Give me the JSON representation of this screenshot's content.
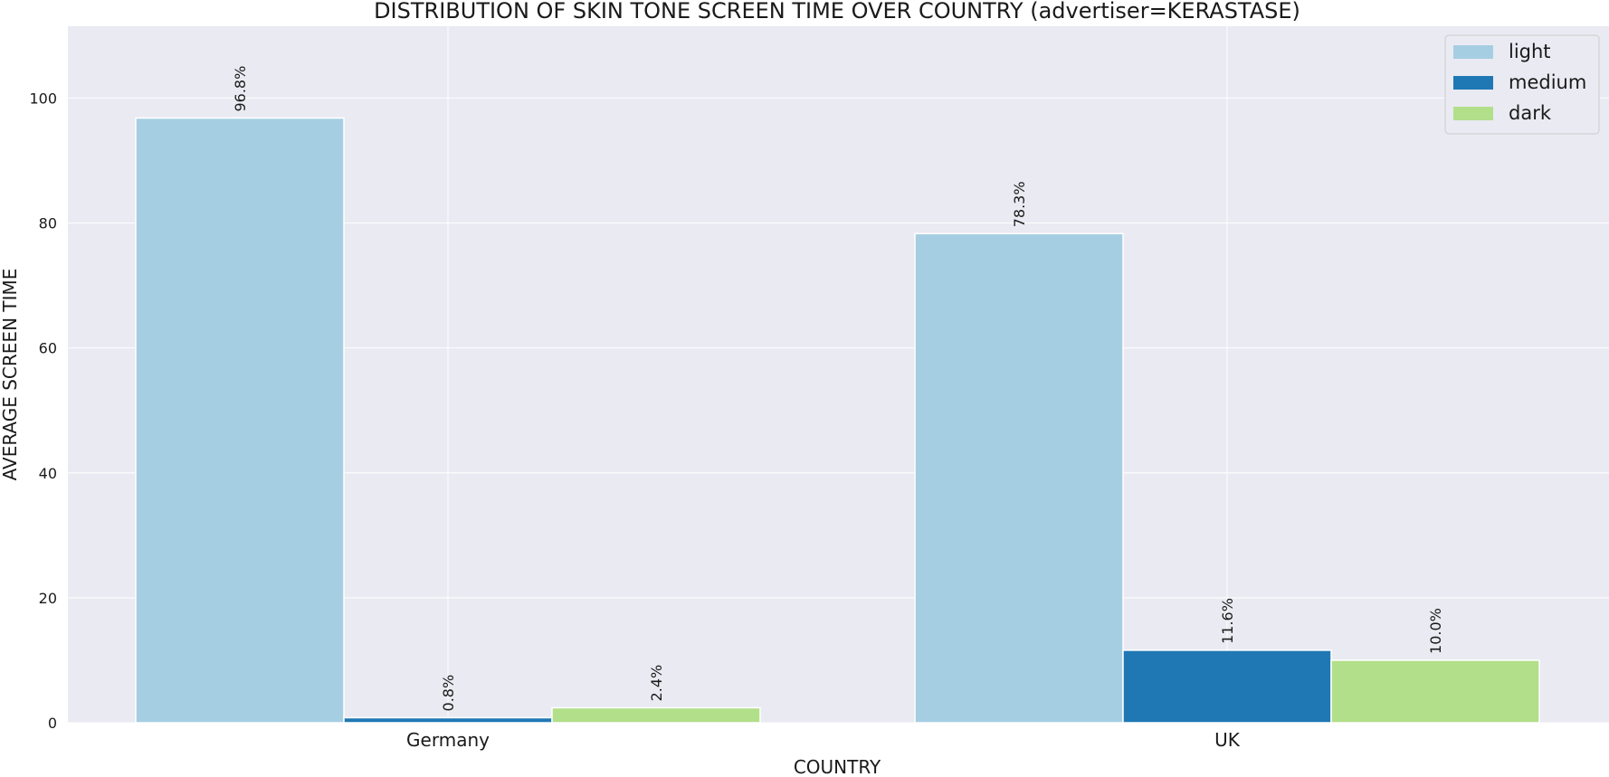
{
  "chart_data": {
    "type": "bar",
    "title": "DISTRIBUTION OF SKIN TONE SCREEN TIME OVER COUNTRY (advertiser=KERASTASE)",
    "xlabel": "COUNTRY",
    "ylabel": "AVERAGE SCREEN TIME",
    "categories": [
      "Germany",
      "UK"
    ],
    "series": [
      {
        "name": "light",
        "color": "#a6cee3",
        "values": [
          96.8,
          78.3
        ],
        "labels": [
          "96.8%",
          "78.3%"
        ]
      },
      {
        "name": "medium",
        "color": "#1f78b4",
        "values": [
          0.8,
          11.6
        ],
        "labels": [
          "0.8%",
          "11.6%"
        ]
      },
      {
        "name": "dark",
        "color": "#b2df8a",
        "values": [
          2.4,
          10.0
        ],
        "labels": [
          "2.4%",
          "10.0%"
        ]
      }
    ],
    "ylim": [
      0,
      111.5
    ],
    "yticks": [
      0,
      20,
      40,
      60,
      80,
      100
    ],
    "grid": true,
    "legend_position": "top-right",
    "background": "#eaeaf2"
  }
}
